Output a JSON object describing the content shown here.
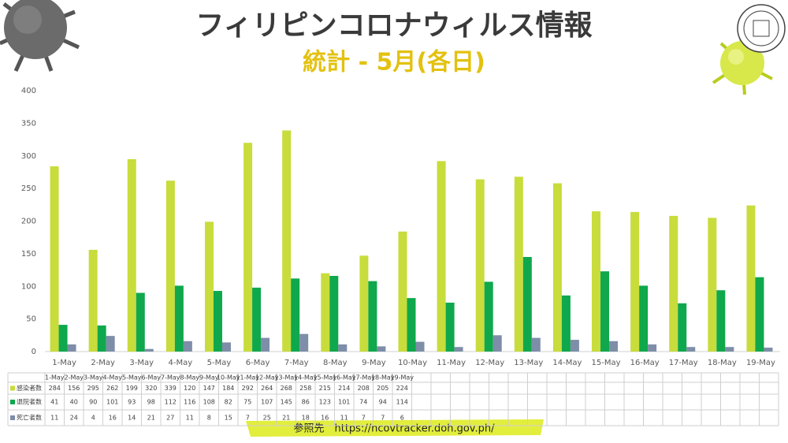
{
  "chart_data": {
    "type": "bar",
    "title": "フィリピンコロナウィルス情報",
    "subtitle": "統計 - 5月(各日)",
    "source": "参照先　https://ncovtracker.doh.gov.ph/",
    "categories": [
      "1-May",
      "2-May",
      "3-May",
      "4-May",
      "5-May",
      "6-May",
      "7-May",
      "8-May",
      "9-May",
      "10-May",
      "11-May",
      "12-May",
      "13-May",
      "14-May",
      "15-May",
      "16-May",
      "17-May",
      "18-May",
      "19-May"
    ],
    "series": [
      {
        "name": "感染者数",
        "color": "#c8dc3c",
        "values": [
          284,
          156,
          295,
          262,
          199,
          320,
          339,
          120,
          147,
          184,
          292,
          264,
          268,
          258,
          215,
          214,
          208,
          205,
          224
        ]
      },
      {
        "name": "退院者数",
        "color": "#0fa84c",
        "values": [
          41,
          40,
          90,
          101,
          93,
          98,
          112,
          116,
          108,
          82,
          75,
          107,
          145,
          86,
          123,
          101,
          74,
          94,
          114
        ]
      },
      {
        "name": "死亡者数",
        "color": "#7e8ea8",
        "values": [
          11,
          24,
          4,
          16,
          14,
          21,
          27,
          11,
          8,
          15,
          7,
          25,
          21,
          18,
          16,
          11,
          7,
          7,
          6
        ]
      }
    ],
    "ylim": [
      0,
      400
    ],
    "yticks": [
      0,
      50,
      100,
      150,
      200,
      250,
      300,
      350,
      400
    ],
    "grid": false
  }
}
